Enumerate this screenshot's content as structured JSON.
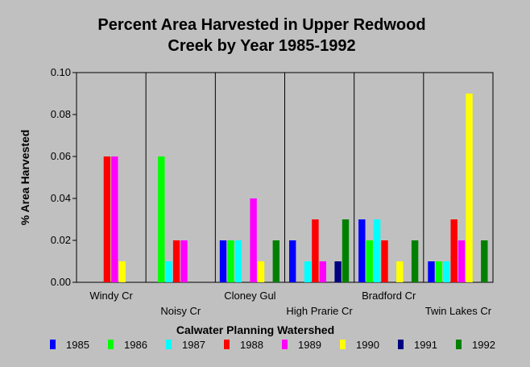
{
  "chart_data": {
    "type": "bar",
    "title_lines": [
      "Percent Area Harvested in Upper Redwood",
      "Creek by Year 1985-1992"
    ],
    "xlabel": "Calwater Planning Watershed",
    "ylabel": "% Area Harvested",
    "ylim": [
      0,
      0.1
    ],
    "yticks": [
      "0.00",
      "0.02",
      "0.04",
      "0.06",
      "0.08",
      "0.10"
    ],
    "categories": [
      "Windy Cr",
      "Noisy Cr",
      "Cloney Gul",
      "High Prarie Cr",
      "Bradford Cr",
      "Twin Lakes Cr"
    ],
    "grid": "vertical category separators",
    "legend_position": "bottom",
    "series": [
      {
        "name": "1985",
        "color": "#0000ff",
        "values": [
          0,
          0,
          0.02,
          0.02,
          0.03,
          0.01
        ]
      },
      {
        "name": "1986",
        "color": "#00ff00",
        "values": [
          0,
          0.06,
          0.02,
          0,
          0.02,
          0.01
        ]
      },
      {
        "name": "1987",
        "color": "#00ffff",
        "values": [
          0,
          0.01,
          0.02,
          0.01,
          0.03,
          0.01
        ]
      },
      {
        "name": "1988",
        "color": "#ff0000",
        "values": [
          0.06,
          0.02,
          0,
          0.03,
          0.02,
          0.03
        ]
      },
      {
        "name": "1989",
        "color": "#ff00ff",
        "values": [
          0.06,
          0.02,
          0.04,
          0.01,
          0,
          0.02
        ]
      },
      {
        "name": "1990",
        "color": "#ffff00",
        "values": [
          0.01,
          0,
          0.01,
          0,
          0.01,
          0.09
        ]
      },
      {
        "name": "1991",
        "color": "#000080",
        "values": [
          0,
          0,
          0,
          0.01,
          0,
          0
        ]
      },
      {
        "name": "1992",
        "color": "#008000",
        "values": [
          0,
          0,
          0.02,
          0.03,
          0.02,
          0.02
        ]
      }
    ]
  }
}
